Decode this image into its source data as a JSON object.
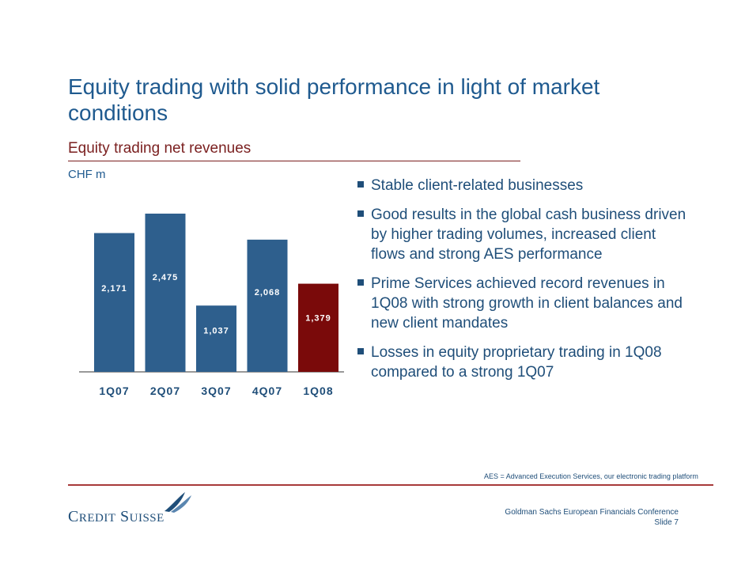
{
  "slide": {
    "title": "Equity trading with solid performance in light of market conditions",
    "subtitle": "Equity trading net revenues",
    "unit": "CHF m"
  },
  "chart_data": {
    "type": "bar",
    "categories": [
      "1Q07",
      "2Q07",
      "3Q07",
      "4Q07",
      "1Q08"
    ],
    "values": [
      2171,
      2475,
      1037,
      2068,
      1379
    ],
    "value_labels": [
      "2,171",
      "2,475",
      "1,037",
      "2,068",
      "1,379"
    ],
    "ylim": [
      0,
      2475
    ],
    "highlight_index": 4,
    "colors": {
      "bar": "#2e5f8d",
      "highlight": "#7a0a0a",
      "label_on_bar": "#ffffff"
    }
  },
  "bullets": [
    "Stable client-related businesses",
    "Good results in the global cash business driven by higher trading volumes, increased client flows and strong AES performance",
    "Prime Services achieved record revenues in 1Q08 with strong growth in client balances and new client mandates",
    "Losses in equity proprietary trading in 1Q08 compared to a strong 1Q07"
  ],
  "footnote": "AES = Advanced Execution Services, our electronic trading platform",
  "footer": {
    "logo_text": "Credit Suisse",
    "event": "Goldman Sachs European Financials Conference",
    "slide_number": "Slide 7"
  }
}
